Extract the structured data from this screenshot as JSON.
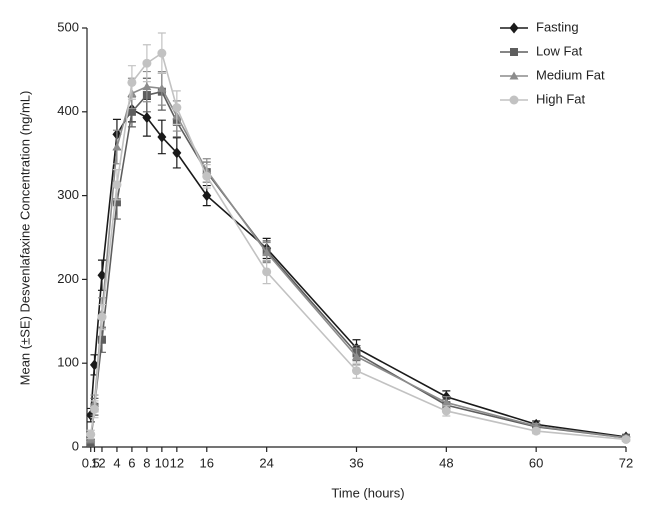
{
  "chart_data": {
    "type": "line",
    "x_label": "Time (hours)",
    "y_label": "Mean (±SE) Desvenlafaxine Concentration (ng/mL)",
    "x": [
      0.5,
      1,
      2,
      4,
      6,
      8,
      10,
      12,
      16,
      24,
      36,
      48,
      60,
      72
    ],
    "series": [
      {
        "name": "Fasting",
        "color": "#1a1a1a",
        "marker": "diamond",
        "values": [
          38,
          98,
          205,
          373,
          403,
          393,
          370,
          351,
          300,
          237,
          118,
          60,
          27,
          12
        ],
        "errors": [
          8,
          12,
          18,
          18,
          15,
          22,
          20,
          18,
          12,
          12,
          10,
          7,
          4,
          3
        ]
      },
      {
        "name": "Low Fat",
        "color": "#5e5e5e",
        "marker": "square",
        "values": [
          5,
          48,
          128,
          292,
          400,
          420,
          424,
          388,
          328,
          234,
          112,
          50,
          24,
          11
        ],
        "errors": [
          4,
          10,
          15,
          20,
          18,
          20,
          22,
          18,
          12,
          12,
          9,
          7,
          3,
          2
        ]
      },
      {
        "name": "Medium Fat",
        "color": "#8c8c8c",
        "marker": "triangle",
        "values": [
          10,
          52,
          160,
          358,
          422,
          430,
          428,
          395,
          330,
          232,
          108,
          53,
          25,
          11
        ],
        "errors": [
          5,
          10,
          18,
          20,
          18,
          18,
          20,
          18,
          14,
          12,
          10,
          7,
          3,
          2
        ]
      },
      {
        "name": "High Fat",
        "color": "#c2c2c2",
        "marker": "circle",
        "values": [
          15,
          45,
          155,
          313,
          435,
          458,
          470,
          405,
          323,
          209,
          91,
          43,
          19,
          9
        ],
        "errors": [
          5,
          10,
          15,
          18,
          20,
          22,
          24,
          20,
          14,
          14,
          9,
          6,
          3,
          2
        ]
      }
    ],
    "xlim": [
      0,
      72
    ],
    "xticks": [
      0.5,
      1,
      2,
      4,
      6,
      8,
      10,
      12,
      16,
      24,
      36,
      48,
      60,
      72
    ],
    "ylim": [
      0,
      500
    ],
    "yticks": [
      0,
      100,
      200,
      300,
      400,
      500
    ],
    "legend": "top-right",
    "grid": false
  }
}
